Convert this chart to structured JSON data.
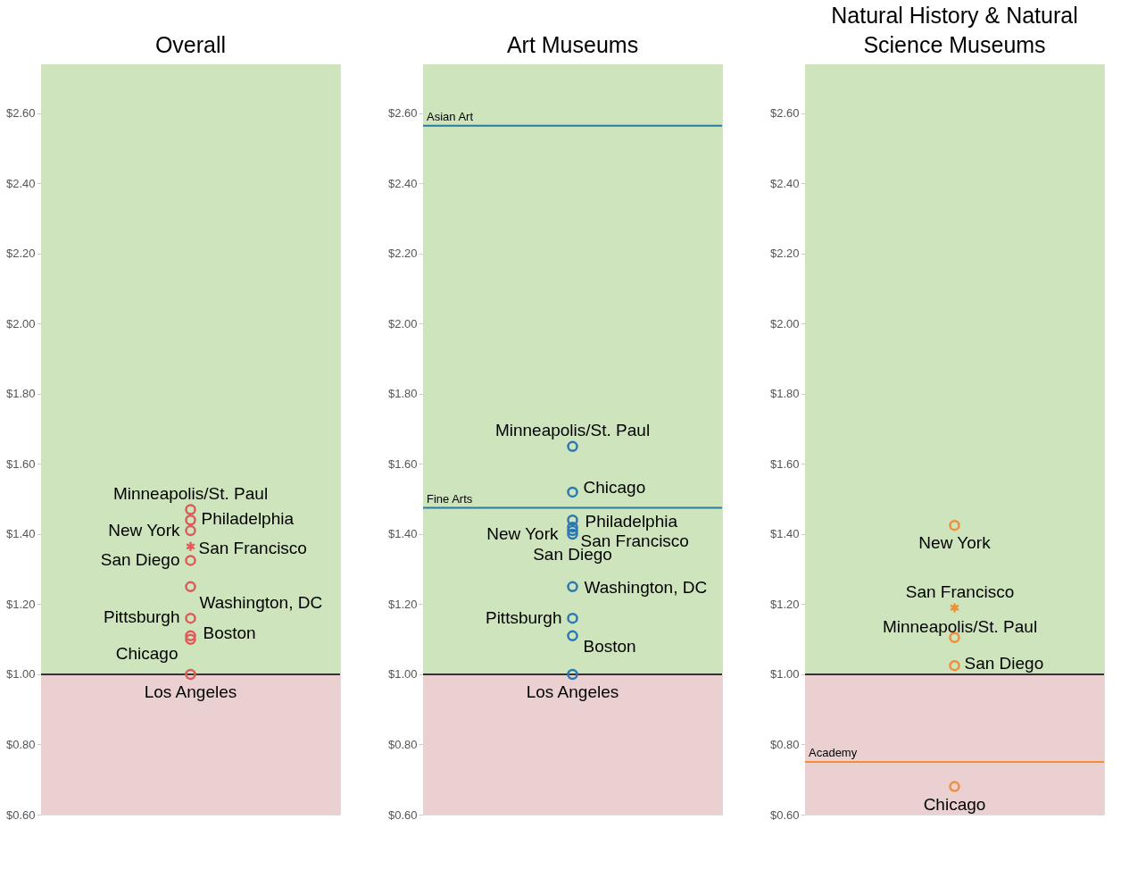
{
  "chart_data": [
    {
      "type": "scatter",
      "title": "Overall",
      "categories": [
        null
      ],
      "ylim": [
        0.6,
        2.74
      ],
      "yticks": [
        {
          "value": 0.6,
          "label": "$0.60"
        },
        {
          "value": 0.8,
          "label": "$0.80"
        },
        {
          "value": 1.0,
          "label": "$1.00"
        },
        {
          "value": 1.2,
          "label": "$1.20"
        },
        {
          "value": 1.4,
          "label": "$1.40"
        },
        {
          "value": 1.6,
          "label": "$1.60"
        },
        {
          "value": 1.8,
          "label": "$1.80"
        },
        {
          "value": 2.0,
          "label": "$2.00"
        },
        {
          "value": 2.2,
          "label": "$2.20"
        },
        {
          "value": 2.4,
          "label": "$2.40"
        },
        {
          "value": 2.6,
          "label": "$2.60"
        }
      ],
      "tick_labels": "y",
      "marker": "circle",
      "series": [
        {
          "name": "Minneapolis/St. Paul",
          "color": "#e05a5a",
          "values": [
            1.47
          ]
        },
        {
          "name": "Philadelphia",
          "color": "#e05a5a",
          "values": [
            1.44
          ]
        },
        {
          "name": "New York",
          "color": "#e05a5a",
          "values": [
            1.41
          ]
        },
        {
          "name": "San Francisco",
          "color": "#e05a5a",
          "values": [
            1.365
          ],
          "marker": "cross"
        },
        {
          "name": "San Diego",
          "color": "#e05a5a",
          "values": [
            1.325
          ]
        },
        {
          "name": "Washington, DC",
          "color": "#e05a5a",
          "values": [
            1.25
          ]
        },
        {
          "name": "Pittsburgh",
          "color": "#e05a5a",
          "values": [
            1.16
          ]
        },
        {
          "name": "Boston",
          "color": "#e05a5a",
          "values": [
            1.11
          ]
        },
        {
          "name": "Chicago",
          "color": "#e05a5a",
          "values": [
            1.1
          ]
        },
        {
          "name": "Los Angeles",
          "color": "#e05a5a",
          "values": [
            1.0
          ]
        }
      ],
      "ref_lines": [
        {
          "axis": "y",
          "value": 1.0,
          "color": "#333333"
        }
      ],
      "bands": [
        {
          "axis": "y",
          "from": 1.0,
          "to": 2.74,
          "color": "#cde4bd"
        },
        {
          "axis": "y",
          "from": 0.6,
          "to": 1.0,
          "color": "#ebd0d2"
        }
      ]
    },
    {
      "type": "scatter",
      "title": "Art Museums",
      "categories": [
        null
      ],
      "ylim": [
        0.6,
        2.74
      ],
      "yticks": [
        {
          "value": 0.6,
          "label": "$0.60"
        },
        {
          "value": 0.8,
          "label": "$0.80"
        },
        {
          "value": 1.0,
          "label": "$1.00"
        },
        {
          "value": 1.2,
          "label": "$1.20"
        },
        {
          "value": 1.4,
          "label": "$1.40"
        },
        {
          "value": 1.6,
          "label": "$1.60"
        },
        {
          "value": 1.8,
          "label": "$1.80"
        },
        {
          "value": 2.0,
          "label": "$2.00"
        },
        {
          "value": 2.2,
          "label": "$2.20"
        },
        {
          "value": 2.4,
          "label": "$2.40"
        },
        {
          "value": 2.6,
          "label": "$2.60"
        }
      ],
      "tick_labels": "y",
      "marker": "circle",
      "series": [
        {
          "name": "Minneapolis/St. Paul",
          "color": "#2a78b8",
          "values": [
            1.65
          ]
        },
        {
          "name": "Chicago",
          "color": "#2a78b8",
          "values": [
            1.52
          ]
        },
        {
          "name": "Philadelphia",
          "color": "#2a78b8",
          "values": [
            1.44
          ]
        },
        {
          "name": "New York",
          "color": "#2a78b8",
          "values": [
            1.42
          ]
        },
        {
          "name": "San Francisco",
          "color": "#2a78b8",
          "values": [
            1.41
          ]
        },
        {
          "name": "San Diego",
          "color": "#2a78b8",
          "values": [
            1.4
          ]
        },
        {
          "name": "Washington, DC",
          "color": "#2a78b8",
          "values": [
            1.25
          ]
        },
        {
          "name": "Pittsburgh",
          "color": "#2a78b8",
          "values": [
            1.16
          ]
        },
        {
          "name": "Boston",
          "color": "#2a78b8",
          "values": [
            1.11
          ]
        },
        {
          "name": "Los Angeles",
          "color": "#2a78b8",
          "values": [
            1.0
          ]
        }
      ],
      "ref_lines": [
        {
          "axis": "y",
          "value": 1.0,
          "color": "#333333"
        },
        {
          "axis": "y",
          "value": 2.565,
          "label": "Asian Art",
          "color": "#2b7aa0"
        },
        {
          "axis": "y",
          "value": 1.475,
          "label": "Fine Arts",
          "color": "#2b7aa0"
        }
      ],
      "bands": [
        {
          "axis": "y",
          "from": 1.0,
          "to": 2.74,
          "color": "#cde4bd"
        },
        {
          "axis": "y",
          "from": 0.6,
          "to": 1.0,
          "color": "#ebd0d2"
        }
      ]
    },
    {
      "type": "scatter",
      "title": "Natural History & Natural Science Museums",
      "categories": [
        null
      ],
      "ylim": [
        0.6,
        2.74
      ],
      "yticks": [
        {
          "value": 0.6,
          "label": "$0.60"
        },
        {
          "value": 0.8,
          "label": "$0.80"
        },
        {
          "value": 1.0,
          "label": "$1.00"
        },
        {
          "value": 1.2,
          "label": "$1.20"
        },
        {
          "value": 1.4,
          "label": "$1.40"
        },
        {
          "value": 1.6,
          "label": "$1.60"
        },
        {
          "value": 1.8,
          "label": "$1.80"
        },
        {
          "value": 2.0,
          "label": "$2.00"
        },
        {
          "value": 2.2,
          "label": "$2.20"
        },
        {
          "value": 2.4,
          "label": "$2.40"
        },
        {
          "value": 2.6,
          "label": "$2.60"
        }
      ],
      "tick_labels": "y",
      "marker": "circle",
      "series": [
        {
          "name": "New York",
          "color": "#f28e35",
          "values": [
            1.425
          ]
        },
        {
          "name": "San Francisco",
          "color": "#f28e35",
          "values": [
            1.19
          ],
          "marker": "cross"
        },
        {
          "name": "Minneapolis/St. Paul",
          "color": "#f28e35",
          "values": [
            1.105
          ]
        },
        {
          "name": "San Diego",
          "color": "#f28e35",
          "values": [
            1.025
          ]
        },
        {
          "name": "Chicago",
          "color": "#f28e35",
          "values": [
            0.68
          ]
        }
      ],
      "ref_lines": [
        {
          "axis": "y",
          "value": 1.0,
          "color": "#333333"
        },
        {
          "axis": "y",
          "value": 0.75,
          "label": "Academy",
          "color": "#f28e35"
        }
      ],
      "bands": [
        {
          "axis": "y",
          "from": 1.0,
          "to": 2.74,
          "color": "#cde4bd"
        },
        {
          "axis": "y",
          "from": 0.6,
          "to": 1.0,
          "color": "#ebd0d2"
        }
      ]
    }
  ]
}
